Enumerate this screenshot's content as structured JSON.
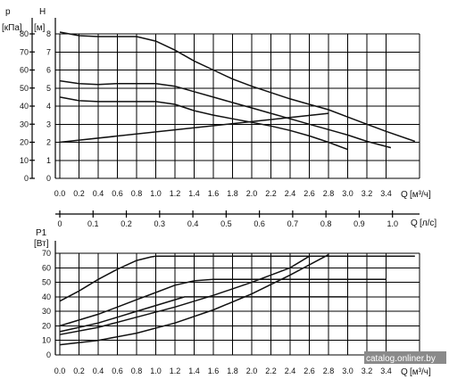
{
  "watermark": "catalog.onliner.by",
  "chart_data": [
    {
      "type": "line",
      "id": "head",
      "ylabel_left_name": "p",
      "ylabel_left_unit": "[кПа]",
      "ylabel_right_name": "H",
      "ylabel_right_unit": "[м]",
      "xlabel_name": "Q",
      "xlabel_unit": "[м³/ч]",
      "x_ticks": [
        "0.0",
        "0.2",
        "0.4",
        "0.6",
        "0.8",
        "1.0",
        "1.2",
        "1.4",
        "1.6",
        "1.8",
        "2.0",
        "2.2",
        "2.4",
        "2.6",
        "2.8",
        "3.0",
        "3.2",
        "3.4"
      ],
      "xlim": [
        0,
        3.8
      ],
      "ylim": [
        0,
        8
      ],
      "kpa_ticks": [
        "0",
        "10",
        "20",
        "30",
        "40",
        "50",
        "60",
        "70",
        "80"
      ],
      "m_ticks": [
        "0",
        "1",
        "2",
        "3",
        "4",
        "5",
        "6",
        "7",
        "8"
      ],
      "curves": [
        {
          "x": [
            0,
            0.2,
            0.4,
            0.6,
            0.8,
            1.0,
            1.2,
            1.4,
            1.6,
            1.8,
            2.0,
            2.2,
            2.4,
            2.6,
            2.8,
            3.0,
            3.2,
            3.4,
            3.7
          ],
          "y": [
            8.1,
            7.9,
            7.85,
            7.85,
            7.85,
            7.6,
            7.1,
            6.5,
            6.0,
            5.5,
            5.1,
            4.75,
            4.4,
            4.1,
            3.8,
            3.4,
            3.0,
            2.6,
            2.05
          ]
        },
        {
          "x": [
            0,
            0.2,
            0.4,
            0.6,
            0.8,
            1.0,
            1.2,
            1.4,
            1.6,
            1.8,
            2.0,
            2.2,
            2.4,
            2.6,
            2.8,
            3.0,
            3.2,
            3.45
          ],
          "y": [
            5.4,
            5.25,
            5.2,
            5.25,
            5.25,
            5.25,
            5.1,
            4.8,
            4.5,
            4.2,
            3.9,
            3.6,
            3.3,
            3.0,
            2.7,
            2.4,
            2.05,
            1.7
          ]
        },
        {
          "x": [
            0,
            0.2,
            0.4,
            0.6,
            0.8,
            1.0,
            1.2,
            1.4,
            1.6,
            1.8,
            2.0,
            2.2,
            2.4,
            2.6,
            2.8,
            3.0
          ],
          "y": [
            4.5,
            4.3,
            4.25,
            4.25,
            4.25,
            4.25,
            4.1,
            3.75,
            3.5,
            3.3,
            3.1,
            2.9,
            2.65,
            2.35,
            2.0,
            1.6
          ]
        },
        {
          "x": [
            0,
            2.8
          ],
          "y": [
            2.0,
            3.6
          ]
        }
      ]
    },
    {
      "type": "axis",
      "id": "q-ls",
      "xlabel_name": "Q",
      "xlabel_unit": "[л/с]",
      "xlim": [
        0,
        1.05
      ],
      "ticks": [
        "0",
        "0.1",
        "0.2",
        "0.3",
        "0.4",
        "0.5",
        "0.6",
        "0.7",
        "0.8",
        "0.9",
        "1.0"
      ]
    },
    {
      "type": "line",
      "id": "power",
      "ylabel_name": "P1",
      "ylabel_unit": "[Вт]",
      "xlabel_name": "Q",
      "xlabel_unit": "[м³/ч]",
      "x_ticks": [
        "0.0",
        "0.2",
        "0.4",
        "0.6",
        "0.8",
        "1.0",
        "1.2",
        "1.4",
        "1.6",
        "1.8",
        "2.0",
        "2.2",
        "2.4",
        "2.6",
        "2.8",
        "3.0",
        "3.2",
        "3.4"
      ],
      "xlim": [
        0,
        3.8
      ],
      "ylim": [
        0,
        70
      ],
      "y_ticks": [
        "0",
        "10",
        "20",
        "30",
        "40",
        "50",
        "60",
        "70"
      ],
      "curves": [
        {
          "x": [
            0,
            0.2,
            0.4,
            0.6,
            0.8,
            0.95,
            1.0,
            3.7
          ],
          "y": [
            37,
            44,
            52,
            59,
            65,
            67.5,
            68,
            68
          ]
        },
        {
          "x": [
            0,
            0.2,
            0.4,
            0.6,
            0.8,
            1.0,
            1.2,
            1.4,
            1.6,
            3.4
          ],
          "y": [
            20,
            24,
            28,
            33,
            38,
            43,
            48,
            51,
            52,
            52
          ]
        },
        {
          "x": [
            0,
            0.2,
            0.4,
            0.6,
            0.8,
            1.0,
            1.2,
            1.3,
            3.0
          ],
          "y": [
            16,
            19,
            22,
            26,
            30,
            34,
            38,
            40,
            40
          ]
        },
        {
          "x": [
            0,
            0.4,
            0.8,
            1.2,
            1.6,
            2.0,
            2.4,
            2.6
          ],
          "y": [
            14,
            19,
            26,
            33,
            41,
            50,
            60,
            68
          ]
        },
        {
          "x": [
            0,
            0.4,
            0.8,
            1.2,
            1.6,
            2.0,
            2.4,
            2.8
          ],
          "y": [
            7,
            10,
            15,
            22,
            31,
            42,
            55,
            69
          ]
        }
      ]
    }
  ]
}
